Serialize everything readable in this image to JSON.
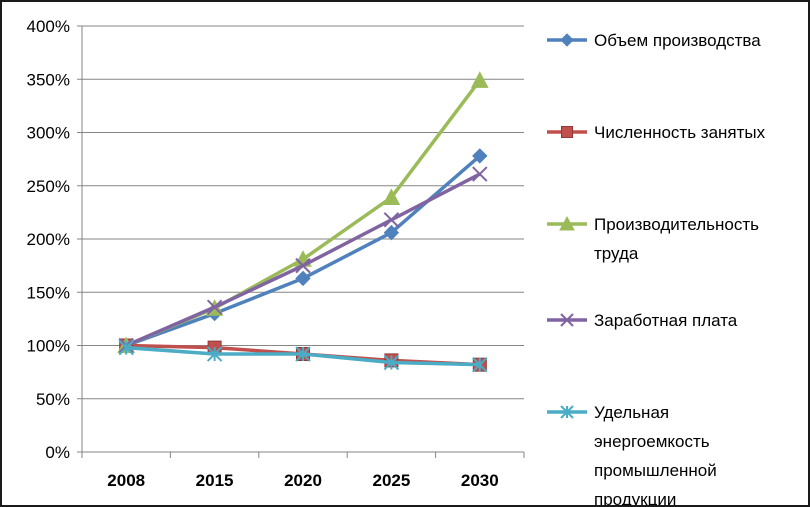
{
  "chart_data": {
    "type": "line",
    "title": "",
    "xlabel": "",
    "ylabel": "",
    "categories": [
      "2008",
      "2015",
      "2020",
      "2025",
      "2030"
    ],
    "ylim": [
      0,
      400
    ],
    "yticks": [
      "0%",
      "50%",
      "100%",
      "150%",
      "200%",
      "250%",
      "300%",
      "350%",
      "400%"
    ],
    "y_unit": "%",
    "grid": "horizontal",
    "legend_position": "right",
    "series": [
      {
        "name_lines": [
          "Объем производства"
        ],
        "values": [
          100,
          130,
          163,
          206,
          278
        ],
        "color": "#4f81bd",
        "marker": "diamond"
      },
      {
        "name_lines": [
          "Численность занятых"
        ],
        "values": [
          100,
          98,
          92,
          86,
          82
        ],
        "color": "#c0504d",
        "marker": "square"
      },
      {
        "name_lines": [
          "Производительность",
          "труда"
        ],
        "values": [
          100,
          135,
          181,
          239,
          349
        ],
        "color": "#9bbb59",
        "marker": "triangle"
      },
      {
        "name_lines": [
          "Заработная плата"
        ],
        "values": [
          100,
          136,
          175,
          218,
          261
        ],
        "color": "#8064a2",
        "marker": "x"
      },
      {
        "name_lines": [
          "Удельная",
          "энергоемкость",
          "промышленной",
          "продукции"
        ],
        "values": [
          98,
          92,
          92,
          84,
          82
        ],
        "color": "#4bacc6",
        "marker": "star"
      }
    ]
  }
}
